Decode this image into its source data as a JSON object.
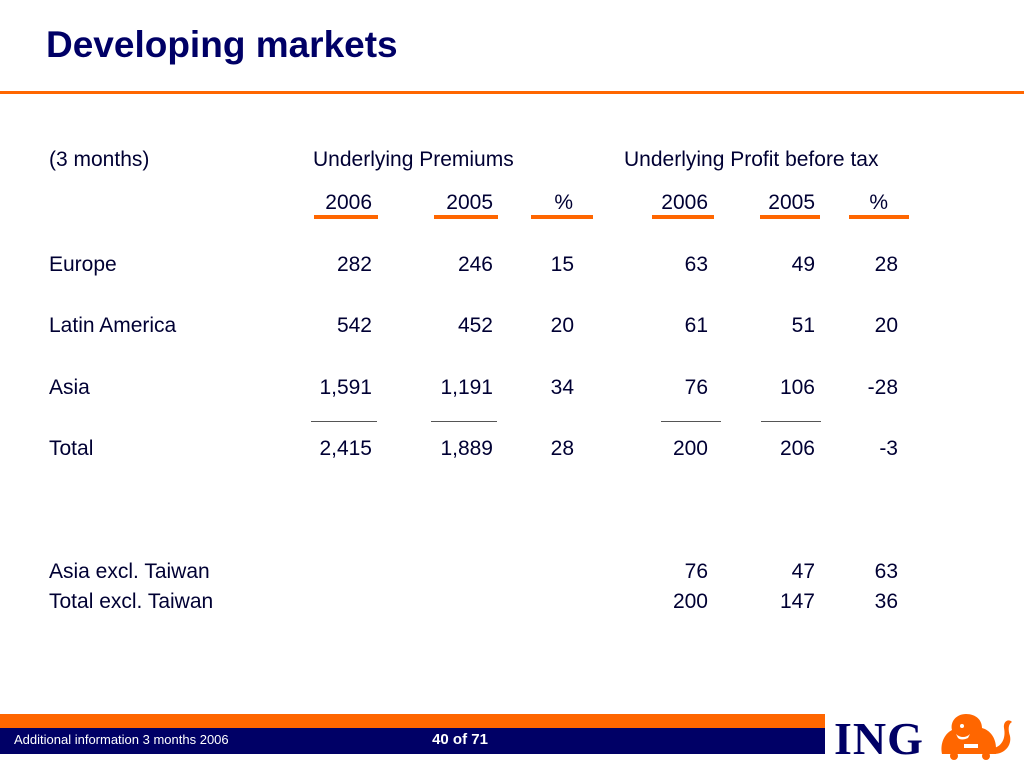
{
  "title": "Developing markets",
  "header": {
    "period": "(3 months)",
    "premiums_group": "Underlying Premiums",
    "profit_group": "Underlying Profit before tax",
    "col_2006": "2006",
    "col_2005": "2005",
    "col_pct": "%"
  },
  "rows": [
    {
      "label": "Europe",
      "prem_2006": "282",
      "prem_2005": "246",
      "prem_pct": "15",
      "pbt_2006": "63",
      "pbt_2005": "49",
      "pbt_pct": "28"
    },
    {
      "label": "Latin America",
      "prem_2006": "542",
      "prem_2005": "452",
      "prem_pct": "20",
      "pbt_2006": "61",
      "pbt_2005": "51",
      "pbt_pct": "20"
    },
    {
      "label": "Asia",
      "prem_2006": "1,591",
      "prem_2005": "1,191",
      "prem_pct": "34",
      "pbt_2006": "76",
      "pbt_2005": "106",
      "pbt_pct": "-28"
    },
    {
      "label": "Total",
      "prem_2006": "2,415",
      "prem_2005": "1,889",
      "prem_pct": "28",
      "pbt_2006": "200",
      "pbt_2005": "206",
      "pbt_pct": "-3"
    }
  ],
  "excl_rows": [
    {
      "label": "Asia excl. Taiwan",
      "pbt_2006": "76",
      "pbt_2005": "47",
      "pbt_pct": "63"
    },
    {
      "label": "Total excl. Taiwan",
      "pbt_2006": "200",
      "pbt_2005": "147",
      "pbt_pct": "36"
    }
  ],
  "footer": {
    "left_text": "Additional information 3 months 2006",
    "page": "40 of 71",
    "logo": "ING"
  },
  "colors": {
    "accent": "#ff6600",
    "navy": "#000066"
  }
}
